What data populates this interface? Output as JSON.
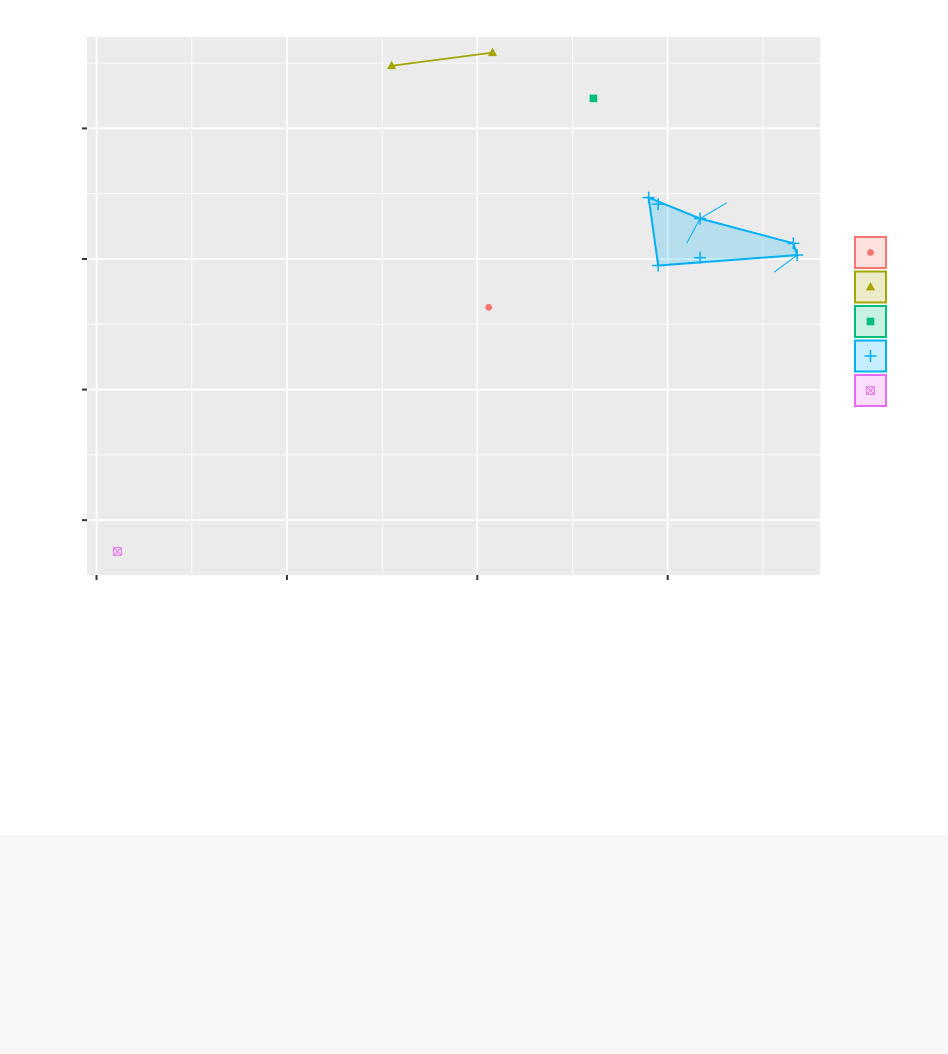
{
  "chart_data": {
    "type": "scatter",
    "title": "",
    "xlabel": "",
    "ylabel": "",
    "xlim": [
      -0.05,
      3.8
    ],
    "ylim": [
      -0.42,
      3.7
    ],
    "x_major_ticks": [
      0,
      1,
      2,
      3
    ],
    "x_minor_ticks": [
      0.5,
      1.5,
      2.5,
      3.5
    ],
    "y_major_ticks": [
      0,
      1,
      2,
      3
    ],
    "y_minor_ticks": [
      0.5,
      1.5,
      2.5,
      3.5
    ],
    "grid": true,
    "legend_position": "right",
    "series": [
      {
        "color": "#F8766D",
        "shape": "circle",
        "points": [
          [
            2.06,
            1.63
          ]
        ],
        "hull": []
      },
      {
        "color": "#A3A500",
        "shape": "triangle",
        "points": [
          [
            1.55,
            3.48
          ],
          [
            2.08,
            3.58
          ]
        ],
        "hull": [
          [
            1.55,
            3.48
          ],
          [
            2.08,
            3.58
          ]
        ]
      },
      {
        "color": "#00BF7D",
        "shape": "square",
        "points": [
          [
            2.61,
            3.23
          ]
        ],
        "hull": []
      },
      {
        "color": "#00B0F6",
        "shape": "plus",
        "points": [
          [
            2.9,
            2.47
          ],
          [
            2.95,
            2.42
          ],
          [
            3.17,
            2.31
          ],
          [
            3.66,
            2.12
          ],
          [
            3.68,
            2.03
          ],
          [
            2.95,
            1.95
          ],
          [
            3.17,
            2.01
          ]
        ],
        "hull": [
          [
            2.9,
            2.47
          ],
          [
            3.17,
            2.31
          ],
          [
            3.66,
            2.12
          ],
          [
            3.68,
            2.03
          ],
          [
            2.95,
            1.95
          ]
        ],
        "arrows": [
          [
            3.17,
            2.31,
            3.31,
            2.43
          ],
          [
            3.17,
            2.31,
            3.1,
            2.12
          ],
          [
            3.68,
            2.03,
            3.56,
            1.9
          ]
        ]
      },
      {
        "color": "#E76BF3",
        "shape": "square-cross",
        "points": [
          [
            0.11,
            -0.24
          ]
        ],
        "hull": []
      }
    ]
  }
}
